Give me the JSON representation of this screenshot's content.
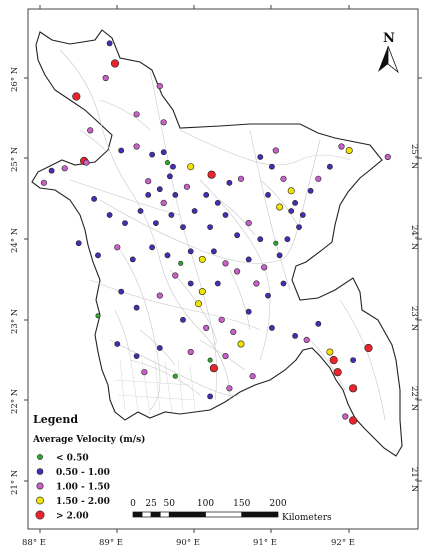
{
  "map": {
    "lon_ticks": [
      "88° E",
      "89° E",
      "90° E",
      "91° E",
      "92° E"
    ],
    "lat_ticks": [
      "26° N",
      "25° N",
      "24° N",
      "23° N",
      "22° N",
      "21° N"
    ],
    "north_label": "N"
  },
  "legend": {
    "title": "Legend",
    "subtitle": "Average Velocity (m/s)",
    "classes": [
      {
        "label": "< 0.50",
        "color": "#2fa82f"
      },
      {
        "label": "0.50 - 1.00",
        "color": "#4b2bb5"
      },
      {
        "label": "1.00 - 1.50",
        "color": "#c860c8"
      },
      {
        "label": "1.50 - 2.00",
        "color": "#f2e200"
      },
      {
        "label": "> 2.00",
        "color": "#e8252b"
      }
    ]
  },
  "scale_bar": {
    "ticks": [
      "0",
      "25",
      "50",
      "100",
      "150",
      "200"
    ],
    "unit": "Kilometers"
  },
  "stations": [
    {
      "lon": 88.9,
      "lat": 26.43,
      "c": 1
    },
    {
      "lon": 88.97,
      "lat": 26.18,
      "c": 4
    },
    {
      "lon": 88.47,
      "lat": 25.77,
      "c": 4
    },
    {
      "lon": 89.25,
      "lat": 25.55,
      "c": 2
    },
    {
      "lon": 89.6,
      "lat": 25.45,
      "c": 2
    },
    {
      "lon": 88.15,
      "lat": 24.85,
      "c": 1
    },
    {
      "lon": 88.05,
      "lat": 24.7,
      "c": 2
    },
    {
      "lon": 88.32,
      "lat": 24.88,
      "c": 2
    },
    {
      "lon": 88.57,
      "lat": 24.97,
      "c": 4
    },
    {
      "lon": 88.6,
      "lat": 24.95,
      "c": 2
    },
    {
      "lon": 89.05,
      "lat": 25.1,
      "c": 1
    },
    {
      "lon": 89.25,
      "lat": 25.15,
      "c": 2
    },
    {
      "lon": 89.45,
      "lat": 25.05,
      "c": 1
    },
    {
      "lon": 89.6,
      "lat": 25.08,
      "c": 1
    },
    {
      "lon": 89.65,
      "lat": 24.95,
      "c": 0
    },
    {
      "lon": 89.72,
      "lat": 24.9,
      "c": 1
    },
    {
      "lon": 89.68,
      "lat": 24.78,
      "c": 1
    },
    {
      "lon": 89.4,
      "lat": 24.72,
      "c": 2
    },
    {
      "lon": 89.55,
      "lat": 24.62,
      "c": 1
    },
    {
      "lon": 89.75,
      "lat": 24.55,
      "c": 1
    },
    {
      "lon": 89.6,
      "lat": 24.45,
      "c": 2
    },
    {
      "lon": 89.95,
      "lat": 24.9,
      "c": 3
    },
    {
      "lon": 90.22,
      "lat": 24.8,
      "c": 4
    },
    {
      "lon": 90.45,
      "lat": 24.7,
      "c": 1
    },
    {
      "lon": 90.6,
      "lat": 24.75,
      "c": 2
    },
    {
      "lon": 90.85,
      "lat": 25.02,
      "c": 1
    },
    {
      "lon": 91.05,
      "lat": 25.1,
      "c": 2
    },
    {
      "lon": 91.0,
      "lat": 24.9,
      "c": 1
    },
    {
      "lon": 91.15,
      "lat": 24.75,
      "c": 2
    },
    {
      "lon": 90.95,
      "lat": 24.55,
      "c": 1
    },
    {
      "lon": 91.25,
      "lat": 24.6,
      "c": 3
    },
    {
      "lon": 91.3,
      "lat": 24.45,
      "c": 1
    },
    {
      "lon": 91.4,
      "lat": 24.3,
      "c": 1
    },
    {
      "lon": 91.5,
      "lat": 24.6,
      "c": 1
    },
    {
      "lon": 91.6,
      "lat": 24.75,
      "c": 2
    },
    {
      "lon": 91.75,
      "lat": 24.9,
      "c": 1
    },
    {
      "lon": 91.9,
      "lat": 25.15,
      "c": 2
    },
    {
      "lon": 92.0,
      "lat": 25.1,
      "c": 3
    },
    {
      "lon": 92.5,
      "lat": 25.02,
      "c": 2
    },
    {
      "lon": 91.1,
      "lat": 24.4,
      "c": 3
    },
    {
      "lon": 91.25,
      "lat": 24.35,
      "c": 1
    },
    {
      "lon": 88.7,
      "lat": 24.5,
      "c": 1
    },
    {
      "lon": 88.9,
      "lat": 24.3,
      "c": 1
    },
    {
      "lon": 89.1,
      "lat": 24.2,
      "c": 1
    },
    {
      "lon": 89.3,
      "lat": 24.35,
      "c": 1
    },
    {
      "lon": 89.5,
      "lat": 24.2,
      "c": 1
    },
    {
      "lon": 89.7,
      "lat": 24.3,
      "c": 1
    },
    {
      "lon": 89.85,
      "lat": 24.15,
      "c": 1
    },
    {
      "lon": 90.0,
      "lat": 24.35,
      "c": 1
    },
    {
      "lon": 90.2,
      "lat": 24.15,
      "c": 1
    },
    {
      "lon": 90.4,
      "lat": 24.3,
      "c": 1
    },
    {
      "lon": 90.55,
      "lat": 24.05,
      "c": 1
    },
    {
      "lon": 90.7,
      "lat": 24.2,
      "c": 2
    },
    {
      "lon": 90.85,
      "lat": 24.0,
      "c": 1
    },
    {
      "lon": 91.05,
      "lat": 23.95,
      "c": 0
    },
    {
      "lon": 91.2,
      "lat": 24.0,
      "c": 1
    },
    {
      "lon": 88.5,
      "lat": 23.95,
      "c": 1
    },
    {
      "lon": 88.75,
      "lat": 23.8,
      "c": 1
    },
    {
      "lon": 89.0,
      "lat": 23.9,
      "c": 2
    },
    {
      "lon": 89.2,
      "lat": 23.75,
      "c": 1
    },
    {
      "lon": 89.45,
      "lat": 23.9,
      "c": 1
    },
    {
      "lon": 89.65,
      "lat": 23.8,
      "c": 1
    },
    {
      "lon": 89.82,
      "lat": 23.7,
      "c": 0
    },
    {
      "lon": 89.95,
      "lat": 23.85,
      "c": 1
    },
    {
      "lon": 90.1,
      "lat": 23.75,
      "c": 3
    },
    {
      "lon": 90.25,
      "lat": 23.85,
      "c": 1
    },
    {
      "lon": 90.4,
      "lat": 23.7,
      "c": 2
    },
    {
      "lon": 90.55,
      "lat": 23.6,
      "c": 2
    },
    {
      "lon": 90.7,
      "lat": 23.75,
      "c": 1
    },
    {
      "lon": 90.9,
      "lat": 23.65,
      "c": 2
    },
    {
      "lon": 91.1,
      "lat": 23.8,
      "c": 1
    },
    {
      "lon": 89.75,
      "lat": 23.55,
      "c": 2
    },
    {
      "lon": 89.95,
      "lat": 23.45,
      "c": 1
    },
    {
      "lon": 90.1,
      "lat": 23.35,
      "c": 3
    },
    {
      "lon": 90.3,
      "lat": 23.45,
      "c": 1
    },
    {
      "lon": 90.05,
      "lat": 23.2,
      "c": 3
    },
    {
      "lon": 89.55,
      "lat": 23.3,
      "c": 2
    },
    {
      "lon": 89.25,
      "lat": 23.15,
      "c": 1
    },
    {
      "lon": 89.05,
      "lat": 23.35,
      "c": 1
    },
    {
      "lon": 88.75,
      "lat": 23.05,
      "c": 0
    },
    {
      "lon": 89.85,
      "lat": 23.0,
      "c": 1
    },
    {
      "lon": 90.15,
      "lat": 22.9,
      "c": 2
    },
    {
      "lon": 90.35,
      "lat": 23.0,
      "c": 2
    },
    {
      "lon": 90.5,
      "lat": 22.85,
      "c": 2
    },
    {
      "lon": 90.7,
      "lat": 23.1,
      "c": 1
    },
    {
      "lon": 90.6,
      "lat": 22.7,
      "c": 3
    },
    {
      "lon": 90.4,
      "lat": 22.55,
      "c": 2
    },
    {
      "lon": 90.2,
      "lat": 22.5,
      "c": 0
    },
    {
      "lon": 89.95,
      "lat": 22.6,
      "c": 2
    },
    {
      "lon": 89.55,
      "lat": 22.65,
      "c": 1
    },
    {
      "lon": 89.25,
      "lat": 22.55,
      "c": 1
    },
    {
      "lon": 89.0,
      "lat": 22.7,
      "c": 1
    },
    {
      "lon": 89.35,
      "lat": 22.35,
      "c": 2
    },
    {
      "lon": 89.75,
      "lat": 22.3,
      "c": 0
    },
    {
      "lon": 90.25,
      "lat": 22.4,
      "c": 4
    },
    {
      "lon": 90.45,
      "lat": 22.15,
      "c": 2
    },
    {
      "lon": 90.2,
      "lat": 22.05,
      "c": 1
    },
    {
      "lon": 90.75,
      "lat": 22.3,
      "c": 2
    },
    {
      "lon": 91.0,
      "lat": 22.9,
      "c": 1
    },
    {
      "lon": 91.3,
      "lat": 22.8,
      "c": 1
    },
    {
      "lon": 91.6,
      "lat": 22.95,
      "c": 1
    },
    {
      "lon": 91.75,
      "lat": 22.6,
      "c": 3
    },
    {
      "lon": 91.8,
      "lat": 22.5,
      "c": 4
    },
    {
      "lon": 91.85,
      "lat": 22.35,
      "c": 4
    },
    {
      "lon": 92.05,
      "lat": 22.5,
      "c": 1
    },
    {
      "lon": 92.25,
      "lat": 22.65,
      "c": 4
    },
    {
      "lon": 92.05,
      "lat": 22.15,
      "c": 4
    },
    {
      "lon": 91.95,
      "lat": 21.8,
      "c": 2
    },
    {
      "lon": 92.05,
      "lat": 21.75,
      "c": 4
    },
    {
      "lon": 91.45,
      "lat": 22.75,
      "c": 2
    },
    {
      "lon": 90.95,
      "lat": 23.3,
      "c": 1
    },
    {
      "lon": 91.15,
      "lat": 23.45,
      "c": 1
    },
    {
      "lon": 90.8,
      "lat": 23.45,
      "c": 2
    },
    {
      "lon": 89.4,
      "lat": 24.55,
      "c": 1
    },
    {
      "lon": 90.15,
      "lat": 24.55,
      "c": 1
    },
    {
      "lon": 90.3,
      "lat": 24.45,
      "c": 1
    },
    {
      "lon": 89.9,
      "lat": 24.65,
      "c": 2
    },
    {
      "lon": 91.35,
      "lat": 24.15,
      "c": 1
    },
    {
      "lon": 88.65,
      "lat": 25.35,
      "c": 2
    },
    {
      "lon": 88.85,
      "lat": 26.0,
      "c": 2
    },
    {
      "lon": 89.55,
      "lat": 25.9,
      "c": 2
    }
  ]
}
